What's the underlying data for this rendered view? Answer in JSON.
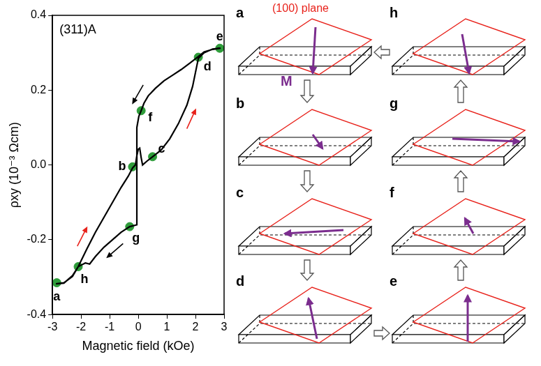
{
  "chart_data": {
    "type": "line",
    "x_label": "Magnetic field (kOe)",
    "y_label": "ρxy (10⁻³ Ωcm)",
    "annotations": [
      {
        "text": "(311)A"
      }
    ],
    "xlim": [
      -3,
      3
    ],
    "xticks": [
      -3,
      -2,
      -1,
      0,
      1,
      2,
      3
    ],
    "ylim": [
      -0.4,
      0.4
    ],
    "yticks": [
      -0.4,
      -0.2,
      {
        "value": 0,
        "label": "0.0"
      },
      0.2,
      0.4
    ],
    "grid": false,
    "series": [
      {
        "type": "line",
        "color": "#000000",
        "line_style": "solid",
        "x": [
          -2.88,
          -2.6,
          -2.3,
          -2.1,
          -1.8,
          -1.5,
          -1.2,
          -0.9,
          -0.6,
          -0.35,
          -0.2,
          -0.1,
          -0.05,
          0.0,
          0.05,
          0.1,
          0.15,
          0.3,
          0.5,
          0.8,
          1.1,
          1.4,
          1.7,
          1.9,
          2.1,
          2.3,
          2.6,
          2.88,
          2.6,
          2.3,
          2.1,
          1.8,
          1.5,
          1.2,
          0.9,
          0.6,
          0.35,
          0.2,
          0.1,
          0.02,
          -0.05,
          -0.05,
          -0.3,
          -0.6,
          -0.9,
          -1.2,
          -1.5,
          -1.7,
          -1.85,
          -2.0,
          -2.1,
          -2.3,
          -2.6,
          -2.88
        ],
        "values": [
          -0.318,
          -0.315,
          -0.298,
          -0.272,
          -0.225,
          -0.18,
          -0.14,
          -0.1,
          -0.06,
          -0.03,
          -0.008,
          0.0,
          0.025,
          0.042,
          0.045,
          0.02,
          0.0,
          0.01,
          0.022,
          0.04,
          0.07,
          0.11,
          0.16,
          0.21,
          0.285,
          0.3,
          0.31,
          0.312,
          0.309,
          0.302,
          0.29,
          0.272,
          0.255,
          0.24,
          0.225,
          0.205,
          0.185,
          0.165,
          0.145,
          0.13,
          0.1,
          -0.16,
          -0.165,
          -0.18,
          -0.2,
          -0.22,
          -0.245,
          -0.265,
          -0.262,
          -0.268,
          -0.272,
          -0.296,
          -0.316,
          -0.318
        ]
      },
      {
        "type": "scatter",
        "color": "#2e9c3a",
        "marker": "circle",
        "x": [
          -2.85,
          -0.2,
          0.5,
          2.1,
          2.85,
          0.1,
          -0.3,
          -2.1
        ],
        "values": [
          -0.315,
          -0.005,
          0.022,
          0.288,
          0.312,
          0.145,
          -0.165,
          -0.272
        ],
        "labels": [
          "a",
          "b",
          "c",
          "d",
          "e",
          "f",
          "g",
          "h"
        ]
      }
    ]
  },
  "diagram": {
    "plane_label": "(100) plane",
    "vector_label": "M",
    "panels": [
      "a",
      "b",
      "c",
      "d",
      "e",
      "f",
      "g",
      "h"
    ]
  }
}
